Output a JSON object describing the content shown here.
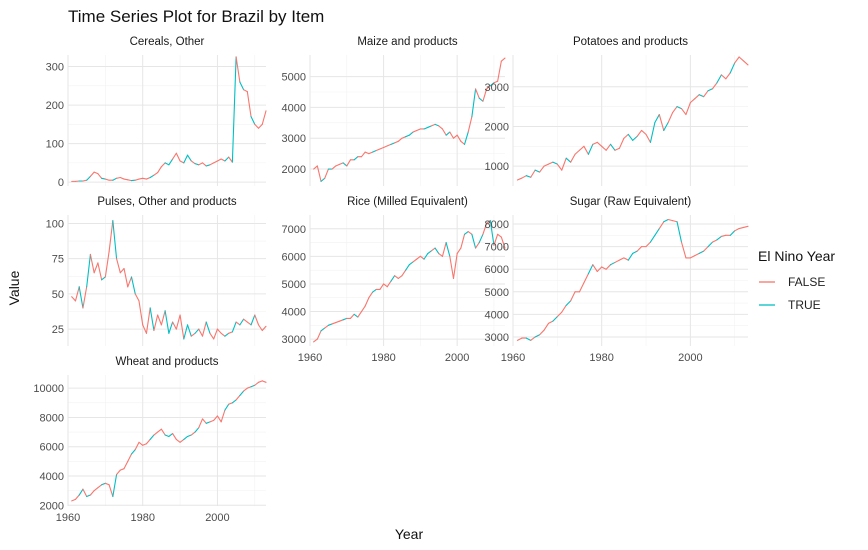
{
  "chart_data": {
    "type": "line",
    "title": "Time Series Plot for Brazil by Item",
    "xlabel": "Year",
    "ylabel": "Value",
    "xlim": [
      1960,
      2013
    ],
    "x_ticks": [
      1960,
      1980,
      2000
    ],
    "legend": {
      "title": "El Nino Year",
      "placement": "right",
      "entries": [
        {
          "label": "FALSE",
          "color": "#F8766D"
        },
        {
          "label": "TRUE",
          "color": "#00BFC4"
        }
      ]
    },
    "el_nino_years": [
      1963,
      1965,
      1969,
      1972,
      1977,
      1982,
      1986,
      1987,
      1991,
      1992,
      1994,
      1997,
      2002,
      2004,
      2006,
      2009
    ],
    "years": [
      1961,
      1962,
      1963,
      1964,
      1965,
      1966,
      1967,
      1968,
      1969,
      1970,
      1971,
      1972,
      1973,
      1974,
      1975,
      1976,
      1977,
      1978,
      1979,
      1980,
      1981,
      1982,
      1983,
      1984,
      1985,
      1986,
      1987,
      1988,
      1989,
      1990,
      1991,
      1992,
      1993,
      1994,
      1995,
      1996,
      1997,
      1998,
      1999,
      2000,
      2001,
      2002,
      2003,
      2004,
      2005,
      2006,
      2007,
      2008,
      2009,
      2010,
      2011,
      2012,
      2013
    ],
    "facets": [
      {
        "name": "Cereals, Other",
        "ylim": [
          -10,
          330
        ],
        "y_ticks": [
          0,
          100,
          200,
          300
        ],
        "values": [
          2,
          2,
          3,
          3,
          5,
          15,
          26,
          22,
          10,
          8,
          5,
          5,
          10,
          12,
          8,
          6,
          4,
          5,
          8,
          10,
          8,
          12,
          18,
          25,
          40,
          50,
          45,
          60,
          75,
          55,
          50,
          70,
          55,
          48,
          45,
          50,
          42,
          45,
          50,
          55,
          60,
          55,
          65,
          52,
          325,
          260,
          240,
          235,
          170,
          150,
          140,
          150,
          185
        ]
      },
      {
        "name": "Maize and products",
        "ylim": [
          1450,
          5700
        ],
        "y_ticks": [
          2000,
          3000,
          4000,
          5000
        ],
        "values": [
          2000,
          2100,
          1600,
          1700,
          2000,
          2000,
          2100,
          2150,
          2200,
          2100,
          2300,
          2300,
          2400,
          2400,
          2550,
          2500,
          2550,
          2600,
          2650,
          2700,
          2750,
          2800,
          2850,
          2900,
          3000,
          3050,
          3100,
          3200,
          3250,
          3300,
          3300,
          3350,
          3400,
          3450,
          3400,
          3300,
          3100,
          3200,
          3000,
          3100,
          2900,
          2800,
          3200,
          3700,
          4600,
          4300,
          4200,
          4600,
          4700,
          4800,
          4850,
          5500,
          5600
        ]
      },
      {
        "name": "Potatoes and products",
        "ylim": [
          500,
          3800
        ],
        "y_ticks": [
          1000,
          2000,
          3000
        ],
        "values": [
          650,
          700,
          760,
          720,
          900,
          850,
          1000,
          1050,
          1100,
          1050,
          900,
          1200,
          1100,
          1300,
          1400,
          1500,
          1300,
          1550,
          1600,
          1500,
          1400,
          1550,
          1400,
          1450,
          1700,
          1800,
          1650,
          1750,
          1900,
          1800,
          1600,
          2100,
          2300,
          1900,
          2100,
          2350,
          2500,
          2450,
          2300,
          2600,
          2700,
          2800,
          2750,
          2900,
          2950,
          3100,
          3300,
          3200,
          3350,
          3600,
          3750,
          3650,
          3550
        ]
      },
      {
        "name": "Pulses, Other and products",
        "ylim": [
          13,
          106
        ],
        "y_ticks": [
          25,
          50,
          75,
          100
        ],
        "values": [
          48,
          45,
          55,
          40,
          55,
          78,
          65,
          72,
          60,
          62,
          80,
          102,
          75,
          65,
          68,
          55,
          62,
          50,
          45,
          28,
          22,
          40,
          24,
          35,
          28,
          38,
          22,
          30,
          25,
          35,
          18,
          28,
          20,
          22,
          25,
          20,
          30,
          22,
          18,
          25,
          22,
          20,
          22,
          23,
          30,
          28,
          32,
          30,
          28,
          35,
          28,
          24,
          27
        ]
      },
      {
        "name": "Rice (Milled Equivalent)",
        "ylim": [
          2750,
          7500
        ],
        "y_ticks": [
          3000,
          4000,
          5000,
          6000,
          7000
        ],
        "values": [
          2900,
          3000,
          3300,
          3400,
          3500,
          3550,
          3600,
          3650,
          3700,
          3750,
          3750,
          3900,
          3800,
          4000,
          4200,
          4500,
          4700,
          4800,
          4800,
          5000,
          4900,
          5100,
          5300,
          5200,
          5300,
          5500,
          5700,
          5800,
          5900,
          6000,
          5900,
          6100,
          6200,
          6300,
          6100,
          6000,
          6500,
          6000,
          5200,
          6100,
          6300,
          6800,
          6900,
          6800,
          6300,
          6500,
          6800,
          7200,
          7300,
          6400,
          6800,
          6700,
          6300
        ]
      },
      {
        "name": "Sugar (Raw Equivalent)",
        "ylim": [
          2600,
          8400
        ],
        "y_ticks": [
          3000,
          4000,
          5000,
          6000,
          7000,
          8000
        ],
        "values": [
          2850,
          2950,
          2950,
          2850,
          3000,
          3100,
          3300,
          3600,
          3700,
          3900,
          4100,
          4400,
          4600,
          5000,
          5000,
          5400,
          5800,
          6200,
          5900,
          6100,
          6000,
          6200,
          6300,
          6400,
          6500,
          6400,
          6700,
          6800,
          7000,
          7000,
          7200,
          7500,
          7800,
          8100,
          8200,
          8150,
          8100,
          7200,
          6500,
          6500,
          6600,
          6700,
          6800,
          7000,
          7200,
          7300,
          7450,
          7500,
          7500,
          7700,
          7800,
          7850,
          7900
        ]
      },
      {
        "name": "Wheat and products",
        "ylim": [
          1950,
          10900
        ],
        "y_ticks": [
          2000,
          4000,
          6000,
          8000,
          10000
        ],
        "values": [
          2300,
          2400,
          2700,
          3100,
          2600,
          2700,
          3000,
          3200,
          3400,
          3500,
          3400,
          2600,
          4100,
          4400,
          4500,
          5000,
          5500,
          5800,
          6300,
          6100,
          6200,
          6500,
          6800,
          7000,
          7200,
          6800,
          6700,
          6900,
          6500,
          6300,
          6500,
          6700,
          6800,
          7000,
          7300,
          7900,
          7600,
          7700,
          7800,
          8100,
          7700,
          8500,
          8900,
          9000,
          9200,
          9500,
          9800,
          10000,
          10100,
          10200,
          10400,
          10500,
          10400
        ]
      }
    ]
  }
}
